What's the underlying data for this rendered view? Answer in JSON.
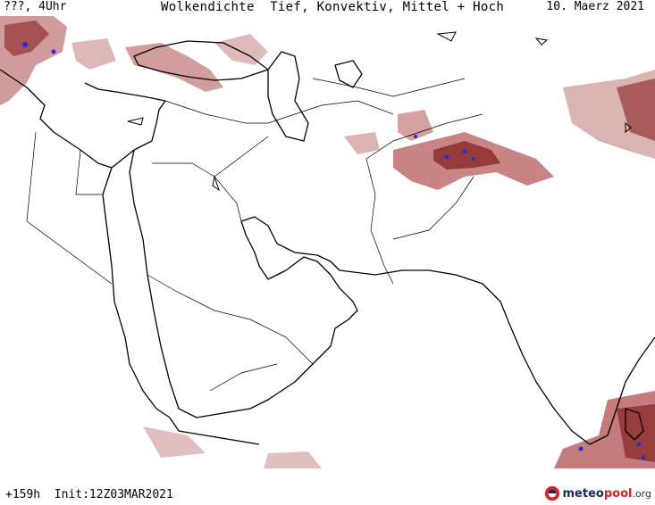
{
  "header": {
    "run_label": "???, 4Uhr",
    "title": "Wolkendichte  Tief, Konvektiv, Mittel + Hoch",
    "date": "10. Maerz 2021"
  },
  "footer": {
    "forecast_info": "+159h  Init:12Z03MAR2021"
  },
  "logo": {
    "part_a": "meteo",
    "part_b": "pool",
    "part_c": ".org"
  },
  "colors": {
    "cloud_low": "#d6a6a6",
    "cloud_mid": "#b86464",
    "cloud_high": "#8c2e2e",
    "cloud_convective": "#2a2ad8",
    "coastline": "#000000",
    "border": "#000000"
  },
  "map_region": "Middle East and South Asia",
  "legend_layers": [
    "Tief",
    "Konvektiv",
    "Mittel",
    "Hoch"
  ]
}
